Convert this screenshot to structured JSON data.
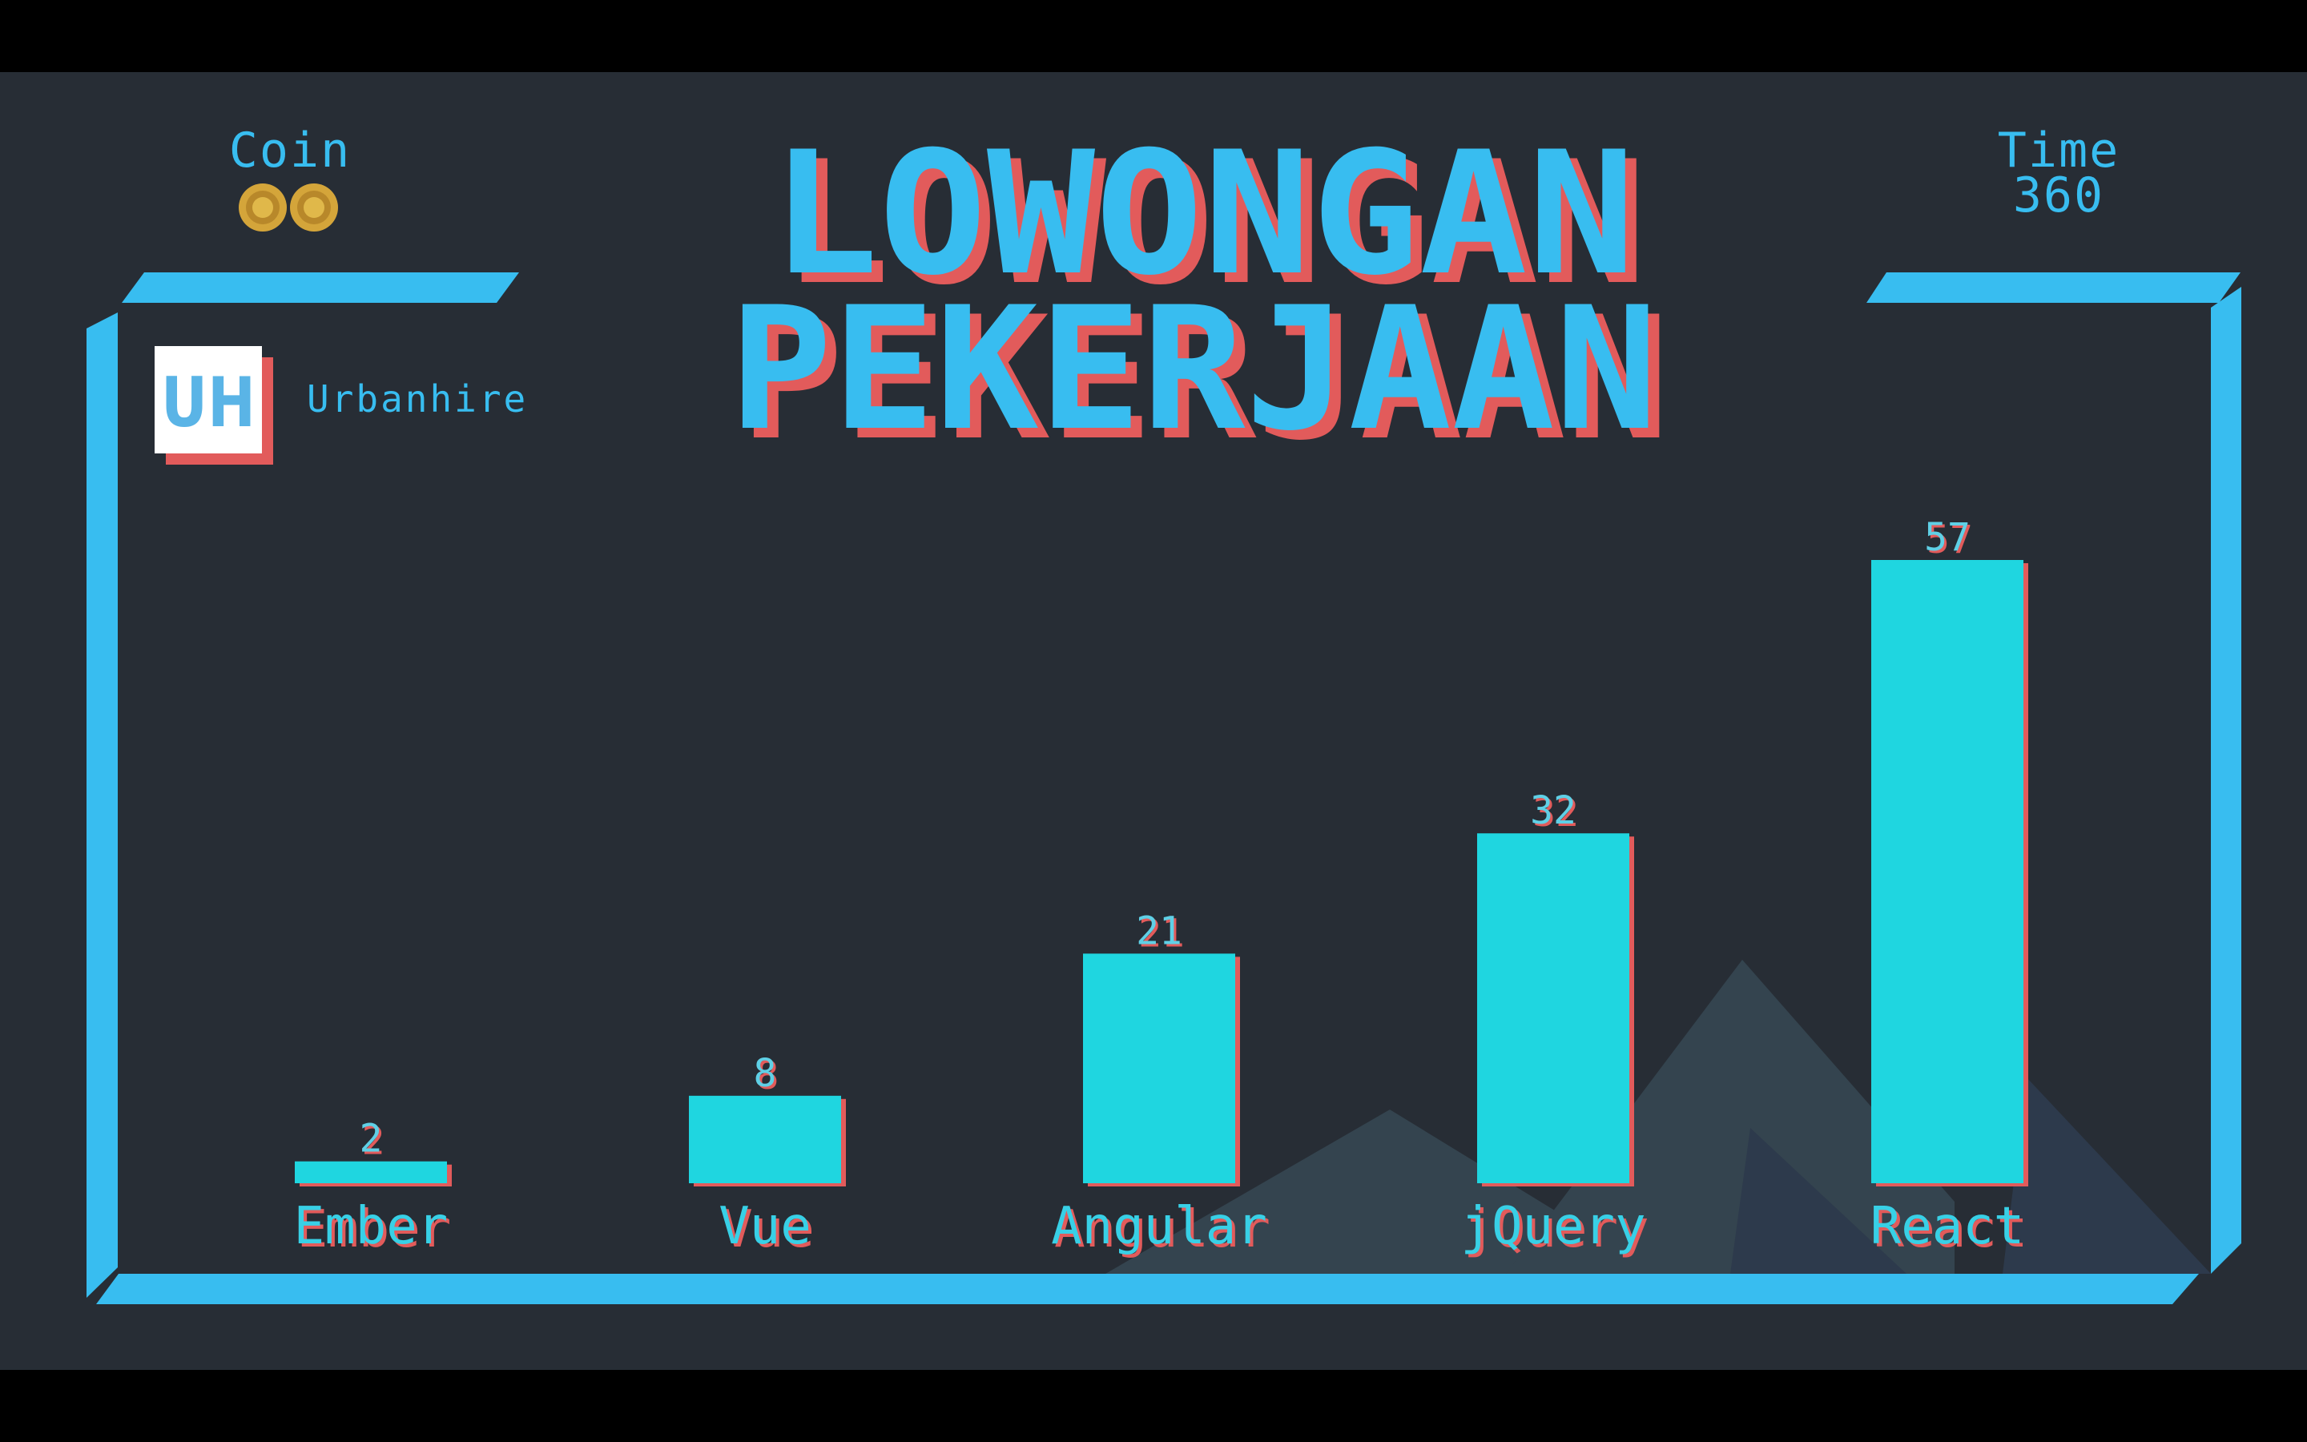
{
  "hud": {
    "coin_label": "Coin",
    "coin_count": 2,
    "time_label": "Time",
    "time_value": "360"
  },
  "brand": {
    "logo_text": "UH",
    "name": "Urbanhire"
  },
  "title": {
    "line1": "LOWONGAN",
    "line2": "PEKERJAAN"
  },
  "colors": {
    "background": "#272d35",
    "frame": "#38bdf0",
    "bar": "#1fd6e0",
    "shadow": "#e25b5b",
    "mountain": "#34444f",
    "coin": "#d4a53a"
  },
  "chart_data": {
    "type": "bar",
    "categories": [
      "Ember",
      "Vue",
      "Angular",
      "jQuery",
      "React"
    ],
    "values": [
      2,
      8,
      21,
      32,
      57
    ],
    "ylim": [
      0,
      57
    ],
    "grid": false
  }
}
